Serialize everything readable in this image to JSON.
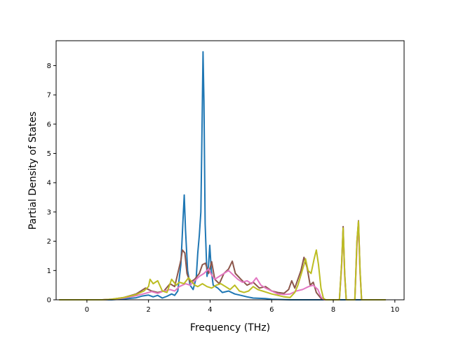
{
  "chart_data": {
    "type": "line",
    "title": "",
    "xlabel": "Frequency (THz)",
    "ylabel": "Partial Density of States",
    "xlim": [
      -1.0,
      10.3
    ],
    "ylim": [
      0,
      8.85
    ],
    "xticks": [
      0,
      2,
      4,
      6,
      8,
      10
    ],
    "yticks": [
      0,
      1,
      2,
      3,
      4,
      5,
      6,
      7,
      8
    ],
    "grid": false,
    "legend": "none",
    "series": [
      {
        "color": "#1f77b4",
        "points": [
          [
            -0.9,
            0
          ],
          [
            0.8,
            0
          ],
          [
            1.2,
            0.03
          ],
          [
            1.6,
            0.07
          ],
          [
            1.8,
            0.13
          ],
          [
            2.0,
            0.16
          ],
          [
            2.15,
            0.1
          ],
          [
            2.3,
            0.15
          ],
          [
            2.45,
            0.06
          ],
          [
            2.6,
            0.12
          ],
          [
            2.75,
            0.2
          ],
          [
            2.85,
            0.15
          ],
          [
            2.95,
            0.3
          ],
          [
            3.05,
            1.2
          ],
          [
            3.12,
            2.7
          ],
          [
            3.16,
            3.58
          ],
          [
            3.2,
            2.4
          ],
          [
            3.27,
            1.0
          ],
          [
            3.35,
            0.5
          ],
          [
            3.45,
            0.35
          ],
          [
            3.55,
            0.75
          ],
          [
            3.6,
            1.6
          ],
          [
            3.65,
            2.2
          ],
          [
            3.7,
            3.0
          ],
          [
            3.73,
            5.2
          ],
          [
            3.77,
            8.47
          ],
          [
            3.8,
            6.8
          ],
          [
            3.84,
            2.6
          ],
          [
            3.9,
            0.8
          ],
          [
            3.95,
            1.2
          ],
          [
            3.99,
            1.86
          ],
          [
            4.04,
            1.0
          ],
          [
            4.1,
            0.5
          ],
          [
            4.25,
            0.4
          ],
          [
            4.4,
            0.25
          ],
          [
            4.6,
            0.3
          ],
          [
            4.8,
            0.2
          ],
          [
            5.0,
            0.15
          ],
          [
            5.2,
            0.1
          ],
          [
            5.4,
            0.06
          ],
          [
            5.6,
            0.05
          ],
          [
            5.8,
            0.04
          ],
          [
            6.0,
            0.02
          ],
          [
            6.3,
            0.01
          ],
          [
            6.6,
            0
          ],
          [
            9.7,
            0
          ]
        ]
      },
      {
        "color": "#8c564b",
        "points": [
          [
            -0.9,
            0
          ],
          [
            0.5,
            0
          ],
          [
            0.8,
            0.02
          ],
          [
            1.2,
            0.08
          ],
          [
            1.6,
            0.2
          ],
          [
            1.9,
            0.4
          ],
          [
            2.1,
            0.3
          ],
          [
            2.3,
            0.25
          ],
          [
            2.5,
            0.3
          ],
          [
            2.7,
            0.55
          ],
          [
            2.85,
            0.45
          ],
          [
            2.95,
            0.9
          ],
          [
            3.05,
            1.35
          ],
          [
            3.1,
            1.7
          ],
          [
            3.18,
            1.6
          ],
          [
            3.25,
            0.9
          ],
          [
            3.35,
            0.6
          ],
          [
            3.5,
            0.7
          ],
          [
            3.65,
            0.9
          ],
          [
            3.75,
            1.2
          ],
          [
            3.85,
            1.25
          ],
          [
            3.95,
            0.9
          ],
          [
            4.05,
            1.3
          ],
          [
            4.15,
            0.7
          ],
          [
            4.3,
            0.55
          ],
          [
            4.45,
            0.9
          ],
          [
            4.6,
            1.05
          ],
          [
            4.72,
            1.32
          ],
          [
            4.82,
            0.9
          ],
          [
            5.0,
            0.7
          ],
          [
            5.2,
            0.5
          ],
          [
            5.4,
            0.6
          ],
          [
            5.6,
            0.4
          ],
          [
            5.8,
            0.45
          ],
          [
            6.0,
            0.3
          ],
          [
            6.2,
            0.25
          ],
          [
            6.4,
            0.22
          ],
          [
            6.55,
            0.35
          ],
          [
            6.65,
            0.65
          ],
          [
            6.75,
            0.4
          ],
          [
            6.85,
            0.7
          ],
          [
            6.95,
            1.0
          ],
          [
            7.05,
            1.45
          ],
          [
            7.15,
            1.1
          ],
          [
            7.25,
            0.5
          ],
          [
            7.35,
            0.6
          ],
          [
            7.45,
            0.25
          ],
          [
            7.6,
            0.05
          ],
          [
            7.7,
            0
          ],
          [
            8.2,
            0
          ],
          [
            8.27,
            1.2
          ],
          [
            8.32,
            2.5
          ],
          [
            8.37,
            0.9
          ],
          [
            8.42,
            0
          ],
          [
            8.7,
            0
          ],
          [
            8.77,
            2.0
          ],
          [
            8.82,
            2.7
          ],
          [
            8.87,
            1.0
          ],
          [
            8.92,
            0
          ],
          [
            9.7,
            0
          ]
        ]
      },
      {
        "color": "#e377c2",
        "points": [
          [
            -0.9,
            0
          ],
          [
            0.5,
            0
          ],
          [
            0.8,
            0.02
          ],
          [
            1.2,
            0.06
          ],
          [
            1.6,
            0.14
          ],
          [
            1.9,
            0.22
          ],
          [
            2.1,
            0.28
          ],
          [
            2.3,
            0.22
          ],
          [
            2.5,
            0.3
          ],
          [
            2.7,
            0.35
          ],
          [
            2.85,
            0.3
          ],
          [
            3.0,
            0.45
          ],
          [
            3.1,
            0.5
          ],
          [
            3.2,
            0.55
          ],
          [
            3.35,
            0.5
          ],
          [
            3.5,
            0.65
          ],
          [
            3.65,
            0.8
          ],
          [
            3.8,
            0.9
          ],
          [
            3.95,
            1.05
          ],
          [
            4.05,
            0.85
          ],
          [
            4.15,
            0.7
          ],
          [
            4.3,
            0.8
          ],
          [
            4.45,
            0.9
          ],
          [
            4.6,
            1.0
          ],
          [
            4.75,
            0.85
          ],
          [
            4.9,
            0.7
          ],
          [
            5.05,
            0.6
          ],
          [
            5.2,
            0.65
          ],
          [
            5.35,
            0.55
          ],
          [
            5.5,
            0.75
          ],
          [
            5.65,
            0.5
          ],
          [
            5.8,
            0.4
          ],
          [
            6.0,
            0.3
          ],
          [
            6.2,
            0.2
          ],
          [
            6.4,
            0.18
          ],
          [
            6.6,
            0.2
          ],
          [
            6.8,
            0.3
          ],
          [
            7.0,
            0.35
          ],
          [
            7.2,
            0.45
          ],
          [
            7.35,
            0.5
          ],
          [
            7.5,
            0.35
          ],
          [
            7.6,
            0.1
          ],
          [
            7.7,
            0
          ],
          [
            8.2,
            0
          ],
          [
            8.27,
            1.1
          ],
          [
            8.32,
            2.4
          ],
          [
            8.37,
            0.8
          ],
          [
            8.42,
            0
          ],
          [
            8.7,
            0
          ],
          [
            8.77,
            1.8
          ],
          [
            8.82,
            2.6
          ],
          [
            8.87,
            0.9
          ],
          [
            8.92,
            0
          ],
          [
            9.7,
            0
          ]
        ]
      },
      {
        "color": "#bcbd22",
        "points": [
          [
            -0.9,
            0
          ],
          [
            0.5,
            0
          ],
          [
            0.8,
            0.02
          ],
          [
            1.2,
            0.08
          ],
          [
            1.6,
            0.18
          ],
          [
            1.85,
            0.3
          ],
          [
            2.0,
            0.45
          ],
          [
            2.05,
            0.7
          ],
          [
            2.15,
            0.55
          ],
          [
            2.3,
            0.65
          ],
          [
            2.45,
            0.3
          ],
          [
            2.6,
            0.25
          ],
          [
            2.75,
            0.7
          ],
          [
            2.9,
            0.5
          ],
          [
            3.0,
            0.6
          ],
          [
            3.15,
            0.55
          ],
          [
            3.3,
            0.75
          ],
          [
            3.5,
            0.5
          ],
          [
            3.6,
            0.45
          ],
          [
            3.75,
            0.55
          ],
          [
            3.9,
            0.45
          ],
          [
            4.05,
            0.4
          ],
          [
            4.2,
            0.5
          ],
          [
            4.35,
            0.55
          ],
          [
            4.5,
            0.45
          ],
          [
            4.65,
            0.35
          ],
          [
            4.8,
            0.5
          ],
          [
            4.95,
            0.3
          ],
          [
            5.1,
            0.25
          ],
          [
            5.25,
            0.3
          ],
          [
            5.4,
            0.45
          ],
          [
            5.55,
            0.35
          ],
          [
            5.7,
            0.3
          ],
          [
            5.85,
            0.25
          ],
          [
            6.0,
            0.2
          ],
          [
            6.2,
            0.15
          ],
          [
            6.4,
            0.1
          ],
          [
            6.6,
            0.08
          ],
          [
            6.75,
            0.25
          ],
          [
            6.85,
            0.5
          ],
          [
            6.95,
            0.85
          ],
          [
            7.05,
            1.2
          ],
          [
            7.1,
            1.4
          ],
          [
            7.18,
            1.0
          ],
          [
            7.28,
            0.9
          ],
          [
            7.38,
            1.4
          ],
          [
            7.45,
            1.7
          ],
          [
            7.52,
            1.2
          ],
          [
            7.6,
            0.4
          ],
          [
            7.68,
            0.05
          ],
          [
            7.75,
            0
          ],
          [
            8.2,
            0
          ],
          [
            8.27,
            1.2
          ],
          [
            8.32,
            2.45
          ],
          [
            8.37,
            0.9
          ],
          [
            8.42,
            0
          ],
          [
            8.7,
            0
          ],
          [
            8.77,
            2.0
          ],
          [
            8.82,
            2.68
          ],
          [
            8.87,
            1.0
          ],
          [
            8.92,
            0
          ],
          [
            9.7,
            0
          ]
        ]
      }
    ]
  }
}
